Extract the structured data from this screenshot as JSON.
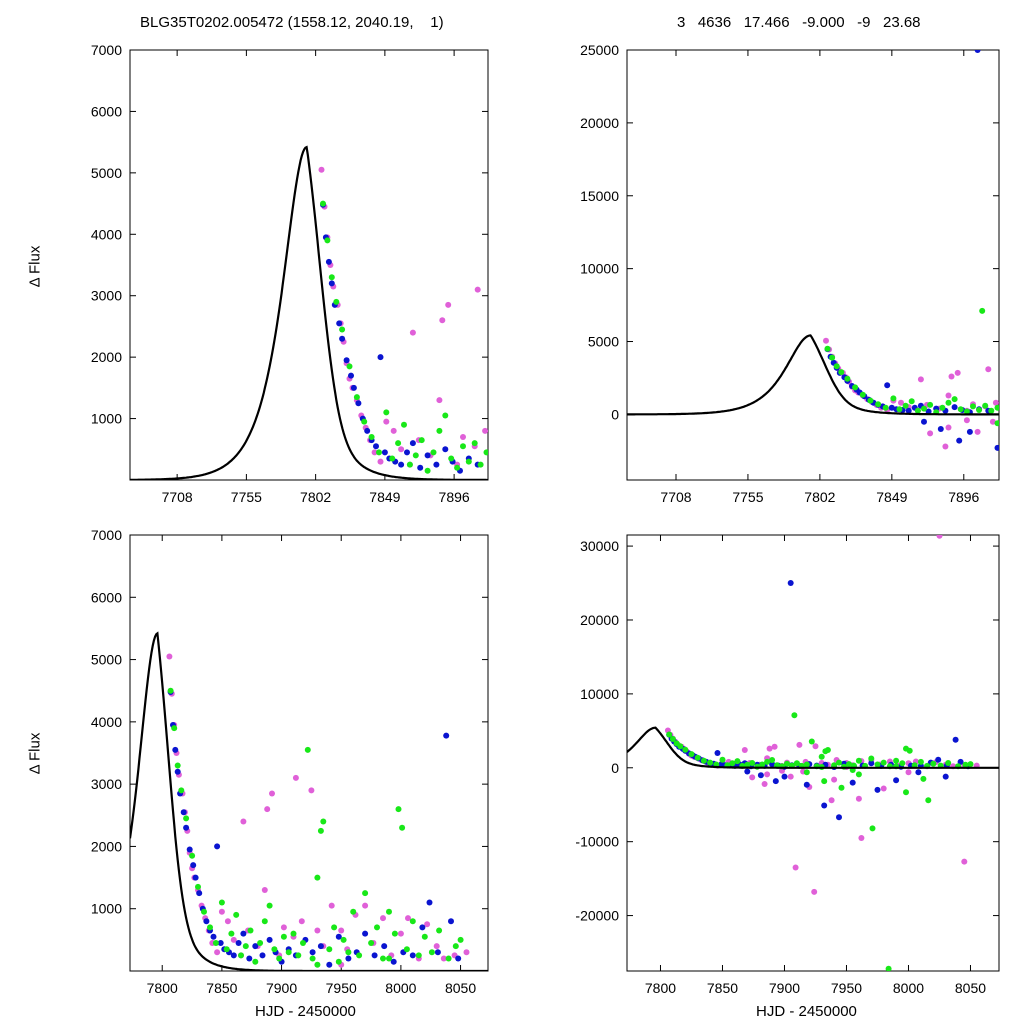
{
  "header": {
    "left": "BLG35T0202.005472 (1558.12, 2040.19,    1)",
    "right": "3   4636   17.466   -9.000   -9   23.68"
  },
  "colors": {
    "magenta": "#e060d8",
    "blue": "#0a14d0",
    "green": "#18e818",
    "model": "#000000"
  },
  "chart_data": [
    {
      "id": "top-left",
      "type": "scatter",
      "xlabel": "",
      "ylabel": "Δ Flux",
      "xlim": [
        7676,
        7919
      ],
      "ylim": [
        0,
        7000
      ],
      "xticks": [
        7708,
        7755,
        7802,
        7849,
        7896
      ],
      "yticks": [
        1000,
        2000,
        3000,
        4000,
        5000,
        6000,
        7000
      ],
      "grid": false
    },
    {
      "id": "top-right",
      "type": "scatter",
      "xlabel": "",
      "ylabel": "",
      "xlim": [
        7676,
        7919
      ],
      "ylim": [
        -4500,
        25000
      ],
      "xticks": [
        7708,
        7755,
        7802,
        7849,
        7896
      ],
      "yticks": [
        0,
        5000,
        10000,
        15000,
        20000,
        25000
      ],
      "grid": false
    },
    {
      "id": "bottom-left",
      "type": "scatter",
      "xlabel": "HJD - 2450000",
      "ylabel": "Δ Flux",
      "xlim": [
        7773,
        8073
      ],
      "ylim": [
        0,
        7000
      ],
      "xticks": [
        7800,
        7850,
        7900,
        7950,
        8000,
        8050
      ],
      "yticks": [
        1000,
        2000,
        3000,
        4000,
        5000,
        6000,
        7000
      ],
      "grid": false
    },
    {
      "id": "bottom-right",
      "type": "scatter",
      "xlabel": "HJD - 2450000",
      "ylabel": "",
      "xlim": [
        7773,
        8073
      ],
      "ylim": [
        -27500,
        31500
      ],
      "xticks": [
        7800,
        7850,
        7900,
        7950,
        8000,
        8050
      ],
      "yticks": [
        -20000,
        -10000,
        0,
        10000,
        20000,
        30000
      ],
      "grid": false
    }
  ],
  "model": {
    "t0": 7796,
    "peak": 5420,
    "rise_tau": 14.5,
    "decay_tau": 15.0
  },
  "series": [
    {
      "name": "",
      "color": "magenta",
      "points": [
        [
          7806,
          5050
        ],
        [
          7808,
          4450
        ],
        [
          7810,
          3950
        ],
        [
          7812,
          3500
        ],
        [
          7814,
          3150
        ],
        [
          7817,
          2850
        ],
        [
          7819,
          2550
        ],
        [
          7821,
          2250
        ],
        [
          7823,
          1900
        ],
        [
          7825,
          1650
        ],
        [
          7827,
          1500
        ],
        [
          7830,
          1300
        ],
        [
          7833,
          1050
        ],
        [
          7836,
          850
        ],
        [
          7839,
          650
        ],
        [
          7842,
          450
        ],
        [
          7846,
          300
        ],
        [
          7850,
          950
        ],
        [
          7855,
          800
        ],
        [
          7860,
          500
        ],
        [
          7866,
          250
        ],
        [
          7872,
          650
        ],
        [
          7880,
          400
        ],
        [
          7886,
          1300
        ],
        [
          7888,
          2600
        ],
        [
          7892,
          2850
        ],
        [
          7898,
          250
        ],
        [
          7902,
          700
        ],
        [
          7910,
          550
        ],
        [
          7917,
          800
        ],
        [
          7925,
          2900
        ],
        [
          7930,
          650
        ],
        [
          7935,
          400
        ],
        [
          7942,
          1050
        ],
        [
          7950,
          650
        ],
        [
          7955,
          350
        ],
        [
          7962,
          900
        ],
        [
          7970,
          1050
        ],
        [
          7977,
          450
        ],
        [
          7985,
          850
        ],
        [
          7992,
          250
        ],
        [
          8000,
          600
        ],
        [
          8006,
          850
        ],
        [
          8015,
          200
        ],
        [
          8022,
          750
        ],
        [
          8030,
          400
        ],
        [
          8036,
          200
        ],
        [
          8045,
          250
        ],
        [
          8055,
          300
        ],
        [
          7874,
          -1300
        ],
        [
          7884,
          -2200
        ],
        [
          7905,
          -1200
        ],
        [
          7920,
          -2600
        ],
        [
          7940,
          -1600
        ],
        [
          7960,
          -4200
        ],
        [
          7980,
          -2800
        ],
        [
          8000,
          -600
        ],
        [
          7868,
          2400
        ],
        [
          7886,
          -900
        ],
        [
          7909,
          -13500
        ],
        [
          7924,
          -16800
        ],
        [
          8025,
          31400
        ],
        [
          8045,
          -12700
        ],
        [
          7912,
          3100
        ],
        [
          7938,
          -4400
        ],
        [
          7962,
          -9500
        ],
        [
          7898,
          -400
        ],
        [
          7915,
          -500
        ],
        [
          7950,
          100
        ]
      ]
    },
    {
      "name": "",
      "color": "blue",
      "points": [
        [
          7807,
          4480
        ],
        [
          7809,
          3950
        ],
        [
          7811,
          3550
        ],
        [
          7813,
          3200
        ],
        [
          7815,
          2850
        ],
        [
          7818,
          2550
        ],
        [
          7820,
          2300
        ],
        [
          7823,
          1950
        ],
        [
          7826,
          1700
        ],
        [
          7828,
          1500
        ],
        [
          7831,
          1250
        ],
        [
          7834,
          1000
        ],
        [
          7837,
          800
        ],
        [
          7840,
          650
        ],
        [
          7843,
          550
        ],
        [
          7846,
          2000
        ],
        [
          7849,
          450
        ],
        [
          7852,
          350
        ],
        [
          7856,
          300
        ],
        [
          7860,
          250
        ],
        [
          7864,
          450
        ],
        [
          7868,
          600
        ],
        [
          7873,
          200
        ],
        [
          7878,
          400
        ],
        [
          7884,
          250
        ],
        [
          7890,
          500
        ],
        [
          7895,
          300
        ],
        [
          7900,
          150
        ],
        [
          7906,
          350
        ],
        [
          7912,
          250
        ],
        [
          7920,
          500
        ],
        [
          7926,
          300
        ],
        [
          7933,
          400
        ],
        [
          7940,
          100
        ],
        [
          7948,
          550
        ],
        [
          7956,
          200
        ],
        [
          7963,
          300
        ],
        [
          7970,
          600
        ],
        [
          7978,
          250
        ],
        [
          7986,
          400
        ],
        [
          7994,
          150
        ],
        [
          8002,
          300
        ],
        [
          8010,
          250
        ],
        [
          8018,
          700
        ],
        [
          8024,
          1100
        ],
        [
          8031,
          300
        ],
        [
          8038,
          3780
        ],
        [
          8042,
          800
        ],
        [
          8048,
          200
        ],
        [
          7870,
          -500
        ],
        [
          7881,
          -1000
        ],
        [
          7893,
          -1800
        ],
        [
          7900,
          -1200
        ],
        [
          7905,
          25000
        ],
        [
          7918,
          -2300
        ],
        [
          7932,
          -5100
        ],
        [
          7944,
          -6700
        ],
        [
          7955,
          -2000
        ],
        [
          7975,
          -3000
        ],
        [
          7990,
          -1700
        ],
        [
          8008,
          -600
        ],
        [
          8030,
          -1200
        ]
      ]
    },
    {
      "name": "",
      "color": "green",
      "points": [
        [
          7807,
          4500
        ],
        [
          7810,
          3900
        ],
        [
          7813,
          3300
        ],
        [
          7816,
          2900
        ],
        [
          7820,
          2450
        ],
        [
          7825,
          1850
        ],
        [
          7830,
          1350
        ],
        [
          7835,
          950
        ],
        [
          7840,
          700
        ],
        [
          7845,
          450
        ],
        [
          7850,
          1100
        ],
        [
          7854,
          350
        ],
        [
          7858,
          600
        ],
        [
          7862,
          900
        ],
        [
          7866,
          250
        ],
        [
          7870,
          400
        ],
        [
          7874,
          650
        ],
        [
          7878,
          150
        ],
        [
          7882,
          450
        ],
        [
          7886,
          800
        ],
        [
          7890,
          1050
        ],
        [
          7894,
          350
        ],
        [
          7898,
          200
        ],
        [
          7902,
          550
        ],
        [
          7906,
          300
        ],
        [
          7910,
          600
        ],
        [
          7914,
          250
        ],
        [
          7918,
          450
        ],
        [
          7922,
          3550
        ],
        [
          7926,
          200
        ],
        [
          7930,
          1500
        ],
        [
          7933,
          2250
        ],
        [
          7935,
          2400
        ],
        [
          7940,
          350
        ],
        [
          7944,
          700
        ],
        [
          7948,
          150
        ],
        [
          7952,
          500
        ],
        [
          7956,
          300
        ],
        [
          7960,
          950
        ],
        [
          7965,
          250
        ],
        [
          7970,
          1250
        ],
        [
          7975,
          450
        ],
        [
          7980,
          700
        ],
        [
          7985,
          200
        ],
        [
          7990,
          950
        ],
        [
          7995,
          600
        ],
        [
          7998,
          2600
        ],
        [
          8001,
          2300
        ],
        [
          8005,
          350
        ],
        [
          8010,
          800
        ],
        [
          8015,
          250
        ],
        [
          8020,
          550
        ],
        [
          8026,
          300
        ],
        [
          8032,
          650
        ],
        [
          8040,
          200
        ],
        [
          8046,
          400
        ],
        [
          8050,
          500
        ],
        [
          7908,
          7100
        ],
        [
          7918,
          -600
        ],
        [
          7932,
          -1800
        ],
        [
          7946,
          -2700
        ],
        [
          7960,
          -900
        ],
        [
          7971,
          -8200
        ],
        [
          7984,
          -27200
        ],
        [
          7998,
          -3300
        ],
        [
          8012,
          -1500
        ],
        [
          8016,
          -4400
        ],
        [
          7930,
          100
        ],
        [
          7955,
          -300
        ],
        [
          7990,
          200
        ]
      ]
    }
  ]
}
